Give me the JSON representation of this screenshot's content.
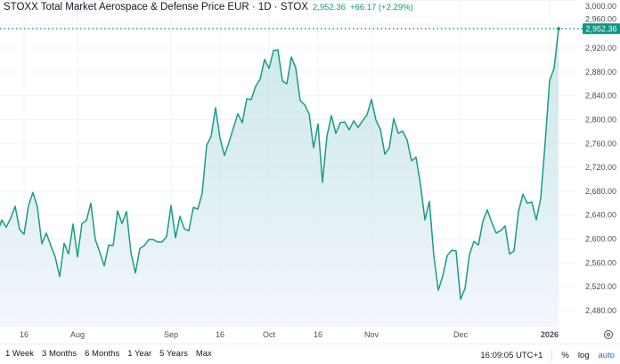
{
  "header": {
    "title": "STOXX Total Market Aerospace & Defense Price EUR · 1D · STOX",
    "last_price": "2,952.36",
    "change": "+66.17 (+2.29%)"
  },
  "colors": {
    "line": "#1a9c86",
    "price_label": "#089981",
    "fill_top": "#b9dfe0",
    "fill_bottom": "#f3f6fd"
  },
  "chart_data": {
    "type": "area",
    "title": "",
    "xlabel": "",
    "ylabel": "",
    "ylim": [
      2480,
      3000
    ],
    "grid": true,
    "last_value_label": "2,952.36",
    "y_ticks": [
      "3,000.00",
      "2,960.00",
      "2,920.00",
      "2,880.00",
      "2,840.00",
      "2,800.00",
      "2,760.00",
      "2,720.00",
      "2,680.00",
      "2,640.00",
      "2,600.00",
      "2,560.00",
      "2,520.00",
      "2,480.00"
    ],
    "y_tick_values": [
      3000,
      2960,
      2920,
      2880,
      2840,
      2800,
      2760,
      2720,
      2680,
      2640,
      2600,
      2560,
      2520,
      2480
    ],
    "x_ticks": [
      {
        "label": "16",
        "index": 6
      },
      {
        "label": "Aug",
        "index": 18
      },
      {
        "label": "Sep",
        "index": 39
      },
      {
        "label": "16",
        "index": 50
      },
      {
        "label": "Oct",
        "index": 61
      },
      {
        "label": "16",
        "index": 72
      },
      {
        "label": "Nov",
        "index": 84
      },
      {
        "label": "Dec",
        "index": 104
      },
      {
        "label": "2026",
        "index": 124
      }
    ],
    "values": [
      2610,
      2632,
      2620,
      2635,
      2655,
      2616,
      2608,
      2656,
      2678,
      2653,
      2592,
      2610,
      2589,
      2570,
      2537,
      2593,
      2575,
      2625,
      2570,
      2626,
      2631,
      2660,
      2599,
      2578,
      2555,
      2590,
      2589,
      2647,
      2626,
      2646,
      2577,
      2543,
      2584,
      2589,
      2599,
      2599,
      2595,
      2595,
      2604,
      2656,
      2602,
      2638,
      2617,
      2614,
      2653,
      2650,
      2677,
      2757,
      2772,
      2820,
      2769,
      2740,
      2762,
      2786,
      2810,
      2795,
      2835,
      2834,
      2856,
      2868,
      2901,
      2886,
      2916,
      2917,
      2865,
      2860,
      2905,
      2887,
      2832,
      2825,
      2810,
      2753,
      2793,
      2695,
      2772,
      2807,
      2777,
      2795,
      2796,
      2783,
      2798,
      2787,
      2798,
      2808,
      2834,
      2799,
      2784,
      2742,
      2753,
      2802,
      2777,
      2781,
      2766,
      2731,
      2737,
      2692,
      2632,
      2663,
      2572,
      2514,
      2538,
      2572,
      2581,
      2580,
      2499,
      2517,
      2574,
      2596,
      2590,
      2629,
      2649,
      2628,
      2610,
      2614,
      2622,
      2575,
      2580,
      2646,
      2675,
      2660,
      2662,
      2632,
      2668,
      2762,
      2866,
      2886.19,
      2952.36
    ]
  },
  "toolbar": {
    "ranges": [
      "1 Week",
      "3 Months",
      "6 Months",
      "1 Year",
      "5 Years",
      "Max"
    ],
    "time": "16:09:05 UTC+1",
    "percent": "%",
    "log": "log",
    "auto": "auto"
  }
}
